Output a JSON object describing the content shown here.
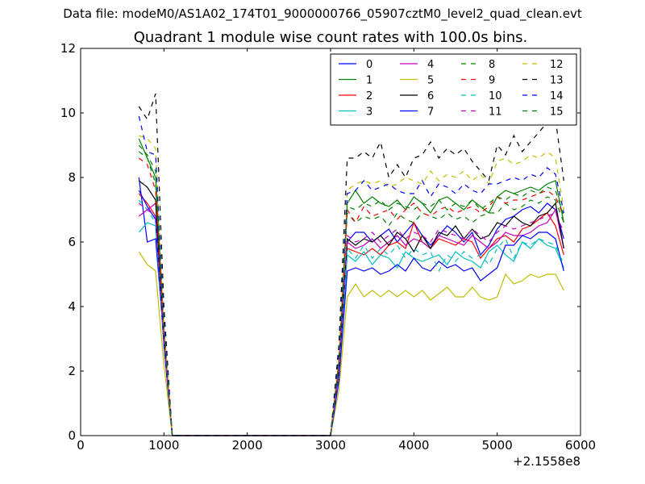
{
  "header": {
    "suptitle": "Data file: modeM0/AS1A02_174T01_9000000766_05907cztM0_level2_quad_clean.evt"
  },
  "chart_data": {
    "type": "line",
    "title": "Quadrant 1 module wise count rates with 100.0s bins.",
    "xlabel": "",
    "ylabel": "",
    "x_offset_label": "+2.1558e8",
    "xlim": [
      0,
      6000
    ],
    "ylim": [
      0,
      12
    ],
    "xticks": [
      0,
      1000,
      2000,
      3000,
      4000,
      5000,
      6000
    ],
    "yticks": [
      0,
      2,
      4,
      6,
      8,
      10,
      12
    ],
    "grid": false,
    "legend": {
      "placement": "top-right",
      "columns": 4
    },
    "x": [
      700,
      800,
      900,
      1000,
      1100,
      1200,
      1300,
      1400,
      1500,
      1600,
      1700,
      1800,
      1900,
      2000,
      2100,
      2200,
      2300,
      2400,
      2500,
      2600,
      2700,
      2800,
      2900,
      3000,
      3100,
      3200,
      3300,
      3400,
      3500,
      3600,
      3700,
      3800,
      3900,
      4000,
      4100,
      4200,
      4300,
      4400,
      4500,
      4600,
      4700,
      4800,
      4900,
      5000,
      5100,
      5200,
      5300,
      5400,
      5500,
      5600,
      5700,
      5800
    ],
    "series": [
      {
        "name": "0",
        "color": "#0000ff",
        "dash": "solid",
        "values": [
          8.0,
          6.0,
          6.1,
          3.0,
          0,
          0,
          0,
          0,
          0,
          0,
          0,
          0,
          0,
          0,
          0,
          0,
          0,
          0,
          0,
          0,
          0,
          0,
          0,
          0,
          2.0,
          6.0,
          6.3,
          6.3,
          6.0,
          6.2,
          6.4,
          6.0,
          6.3,
          6.6,
          6.2,
          5.9,
          6.2,
          6.5,
          6.3,
          6.0,
          6.3,
          5.6,
          5.9,
          6.4,
          6.7,
          6.8,
          7.0,
          7.1,
          6.9,
          7.2,
          7.0,
          6.1
        ]
      },
      {
        "name": "1",
        "color": "#008000",
        "dash": "solid",
        "values": [
          9.2,
          8.6,
          8.0,
          3.2,
          0,
          0,
          0,
          0,
          0,
          0,
          0,
          0,
          0,
          0,
          0,
          0,
          0,
          0,
          0,
          0,
          0,
          0,
          0,
          0,
          2.3,
          7.2,
          7.6,
          7.2,
          7.4,
          7.2,
          7.1,
          7.3,
          7.0,
          7.4,
          7.2,
          6.9,
          7.3,
          7.4,
          7.2,
          7.0,
          7.3,
          7.1,
          6.9,
          7.4,
          7.6,
          7.5,
          7.6,
          7.7,
          7.6,
          7.8,
          7.9,
          6.6
        ]
      },
      {
        "name": "2",
        "color": "#ff0000",
        "dash": "solid",
        "values": [
          7.5,
          7.2,
          6.8,
          2.9,
          0,
          0,
          0,
          0,
          0,
          0,
          0,
          0,
          0,
          0,
          0,
          0,
          0,
          0,
          0,
          0,
          0,
          0,
          0,
          0,
          1.9,
          5.8,
          5.7,
          5.6,
          5.8,
          5.6,
          5.9,
          6.0,
          5.8,
          6.6,
          6.0,
          5.8,
          6.1,
          6.0,
          5.9,
          6.1,
          6.0,
          5.5,
          5.8,
          6.1,
          6.2,
          6.0,
          6.4,
          6.5,
          6.7,
          6.9,
          6.5,
          5.6
        ]
      },
      {
        "name": "3",
        "color": "#00bfbf",
        "dash": "solid",
        "values": [
          6.3,
          6.6,
          6.5,
          2.8,
          0,
          0,
          0,
          0,
          0,
          0,
          0,
          0,
          0,
          0,
          0,
          0,
          0,
          0,
          0,
          0,
          0,
          0,
          0,
          0,
          1.8,
          5.6,
          5.4,
          5.7,
          5.3,
          5.6,
          5.5,
          5.2,
          5.7,
          5.5,
          5.4,
          5.5,
          5.6,
          5.3,
          5.7,
          5.5,
          5.4,
          5.2,
          5.7,
          5.9,
          5.6,
          5.4,
          6.0,
          5.8,
          6.1,
          5.9,
          5.8,
          5.2
        ]
      },
      {
        "name": "4",
        "color": "#bf00bf",
        "dash": "solid",
        "values": [
          6.8,
          7.0,
          7.2,
          3.0,
          0,
          0,
          0,
          0,
          0,
          0,
          0,
          0,
          0,
          0,
          0,
          0,
          0,
          0,
          0,
          0,
          0,
          0,
          0,
          0,
          2.0,
          6.0,
          5.8,
          5.9,
          6.1,
          5.8,
          6.0,
          6.2,
          5.9,
          6.1,
          6.0,
          5.8,
          6.2,
          6.1,
          6.0,
          5.9,
          6.2,
          6.0,
          5.8,
          6.0,
          6.3,
          6.2,
          6.2,
          6.3,
          6.5,
          6.6,
          7.0,
          5.8
        ]
      },
      {
        "name": "5",
        "color": "#bfbf00",
        "dash": "solid",
        "values": [
          5.7,
          5.3,
          5.1,
          2.2,
          0,
          0,
          0,
          0,
          0,
          0,
          0,
          0,
          0,
          0,
          0,
          0,
          0,
          0,
          0,
          0,
          0,
          0,
          0,
          0,
          1.4,
          4.3,
          4.7,
          4.3,
          4.5,
          4.3,
          4.5,
          4.3,
          4.5,
          4.3,
          4.5,
          4.2,
          4.4,
          4.6,
          4.3,
          4.3,
          4.6,
          4.3,
          4.2,
          4.3,
          5.0,
          4.7,
          4.8,
          5.0,
          4.9,
          5.0,
          5.0,
          4.5
        ]
      },
      {
        "name": "6",
        "color": "#000000",
        "dash": "solid",
        "values": [
          7.9,
          7.7,
          7.3,
          3.1,
          0,
          0,
          0,
          0,
          0,
          0,
          0,
          0,
          0,
          0,
          0,
          0,
          0,
          0,
          0,
          0,
          0,
          0,
          0,
          0,
          2.1,
          6.1,
          5.9,
          6.1,
          6.0,
          6.2,
          5.9,
          6.3,
          6.1,
          5.7,
          6.2,
          5.8,
          6.3,
          6.2,
          6.5,
          6.1,
          6.4,
          6.1,
          6.2,
          6.6,
          6.5,
          6.8,
          6.6,
          6.5,
          6.8,
          6.9,
          7.2,
          5.8
        ]
      },
      {
        "name": "7",
        "color": "#0000ff",
        "dash": "solid",
        "values": [
          7.6,
          7.1,
          6.7,
          2.8,
          0,
          0,
          0,
          0,
          0,
          0,
          0,
          0,
          0,
          0,
          0,
          0,
          0,
          0,
          0,
          0,
          0,
          0,
          0,
          0,
          1.7,
          5.1,
          5.2,
          5.1,
          5.2,
          5.0,
          5.1,
          5.3,
          5.1,
          5.5,
          5.2,
          5.1,
          5.4,
          5.2,
          5.3,
          5.1,
          5.2,
          4.8,
          5.0,
          5.2,
          5.9,
          5.9,
          6.2,
          6.1,
          6.3,
          6.3,
          6.1,
          5.1
        ]
      },
      {
        "name": "8",
        "color": "#008000",
        "dash": "dashed",
        "values": [
          8.8,
          8.6,
          7.8,
          3.2,
          0,
          0,
          0,
          0,
          0,
          0,
          0,
          0,
          0,
          0,
          0,
          0,
          0,
          0,
          0,
          0,
          0,
          0,
          0,
          0,
          2.2,
          6.9,
          6.6,
          6.8,
          6.7,
          6.8,
          6.5,
          6.9,
          6.7,
          6.6,
          6.9,
          6.8,
          6.7,
          6.9,
          6.7,
          6.8,
          6.6,
          6.8,
          6.9,
          6.9,
          7.2,
          7.0,
          7.1,
          7.3,
          7.2,
          7.4,
          7.3,
          6.6
        ]
      },
      {
        "name": "9",
        "color": "#ff0000",
        "dash": "dashed",
        "values": [
          8.6,
          8.4,
          7.6,
          3.2,
          0,
          0,
          0,
          0,
          0,
          0,
          0,
          0,
          0,
          0,
          0,
          0,
          0,
          0,
          0,
          0,
          0,
          0,
          0,
          0,
          2.2,
          7.0,
          6.6,
          7.1,
          6.8,
          6.9,
          7.0,
          6.7,
          7.0,
          7.2,
          6.9,
          6.8,
          7.0,
          7.1,
          6.9,
          7.0,
          7.1,
          6.9,
          7.1,
          7.4,
          7.2,
          7.3,
          7.3,
          7.4,
          7.5,
          7.6,
          7.4,
          6.8
        ]
      },
      {
        "name": "10",
        "color": "#00bfbf",
        "dash": "dashed",
        "values": [
          7.3,
          7.0,
          6.6,
          2.9,
          0,
          0,
          0,
          0,
          0,
          0,
          0,
          0,
          0,
          0,
          0,
          0,
          0,
          0,
          0,
          0,
          0,
          0,
          0,
          0,
          1.9,
          5.8,
          5.5,
          5.9,
          5.5,
          5.8,
          5.6,
          5.9,
          5.5,
          5.8,
          5.6,
          5.7,
          5.1,
          5.6,
          5.4,
          5.7,
          5.5,
          5.6,
          5.3,
          5.8,
          6.1,
          5.5,
          6.0,
          5.9,
          6.1,
          6.0,
          5.9,
          5.3
        ]
      },
      {
        "name": "11",
        "color": "#bf00bf",
        "dash": "dashed",
        "values": [
          7.2,
          7.0,
          6.8,
          2.9,
          0,
          0,
          0,
          0,
          0,
          0,
          0,
          0,
          0,
          0,
          0,
          0,
          0,
          0,
          0,
          0,
          0,
          0,
          0,
          0,
          2.0,
          6.2,
          6.0,
          6.1,
          6.3,
          6.0,
          6.2,
          6.4,
          6.1,
          6.3,
          6.2,
          6.0,
          6.4,
          6.3,
          6.2,
          6.1,
          6.4,
          6.2,
          6.0,
          6.3,
          6.5,
          6.4,
          6.5,
          6.6,
          6.7,
          6.8,
          6.9,
          6.3
        ]
      },
      {
        "name": "12",
        "color": "#bfbf00",
        "dash": "dashed",
        "values": [
          9.3,
          9.2,
          8.9,
          3.5,
          0,
          0,
          0,
          0,
          0,
          0,
          0,
          0,
          0,
          0,
          0,
          0,
          0,
          0,
          0,
          0,
          0,
          0,
          0,
          0,
          2.5,
          7.6,
          7.8,
          7.9,
          7.8,
          7.9,
          7.7,
          7.8,
          8.0,
          7.9,
          7.8,
          8.2,
          7.9,
          8.1,
          8.0,
          8.2,
          7.9,
          8.1,
          7.8,
          8.5,
          8.6,
          8.4,
          8.5,
          8.7,
          8.6,
          8.8,
          8.6,
          7.0
        ]
      },
      {
        "name": "13",
        "color": "#000000",
        "dash": "dashed",
        "values": [
          10.2,
          9.8,
          10.6,
          4.0,
          0,
          0,
          0,
          0,
          0,
          0,
          0,
          0,
          0,
          0,
          0,
          0,
          0,
          0,
          0,
          0,
          0,
          0,
          0,
          0,
          2.8,
          8.6,
          8.6,
          8.8,
          8.6,
          9.1,
          8.0,
          8.4,
          8.0,
          8.6,
          8.7,
          9.1,
          8.6,
          8.9,
          8.7,
          8.9,
          8.5,
          8.2,
          7.9,
          9.0,
          8.7,
          9.3,
          8.8,
          9.1,
          9.4,
          9.7,
          9.8,
          7.9
        ]
      },
      {
        "name": "14",
        "color": "#0000ff",
        "dash": "dashed",
        "values": [
          9.9,
          8.8,
          8.7,
          3.6,
          0,
          0,
          0,
          0,
          0,
          0,
          0,
          0,
          0,
          0,
          0,
          0,
          0,
          0,
          0,
          0,
          0,
          0,
          0,
          0,
          2.5,
          7.5,
          7.6,
          7.9,
          7.6,
          7.7,
          7.8,
          7.6,
          7.5,
          7.5,
          7.9,
          7.4,
          7.8,
          7.7,
          7.5,
          7.8,
          7.6,
          7.5,
          7.8,
          7.8,
          7.9,
          8.0,
          7.9,
          8.1,
          8.0,
          8.3,
          8.1,
          6.9
        ]
      },
      {
        "name": "15",
        "color": "#008000",
        "dash": "dashed",
        "values": [
          9.0,
          8.7,
          8.2,
          3.4,
          0,
          0,
          0,
          0,
          0,
          0,
          0,
          0,
          0,
          0,
          0,
          0,
          0,
          0,
          0,
          0,
          0,
          0,
          0,
          0,
          2.3,
          7.1,
          7.0,
          7.2,
          7.1,
          7.3,
          7.0,
          7.2,
          7.1,
          7.0,
          7.2,
          7.1,
          7.3,
          7.0,
          7.2,
          7.1,
          7.3,
          7.0,
          7.2,
          7.4,
          7.3,
          7.5,
          7.4,
          7.6,
          7.5,
          7.7,
          7.6,
          6.8
        ]
      }
    ]
  }
}
